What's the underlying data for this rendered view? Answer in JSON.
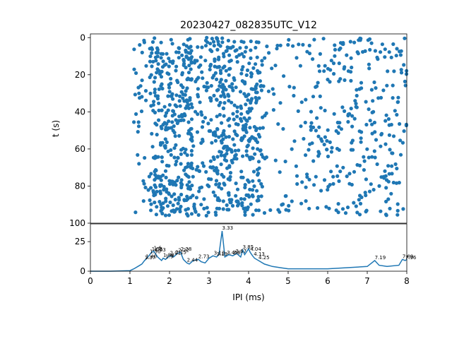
{
  "chart_data": [
    {
      "type": "scatter",
      "title": "20230427_082835UTC_V12",
      "xlabel": "",
      "ylabel": "t (s)",
      "xlim": [
        0,
        8
      ],
      "ylim": [
        100,
        -2
      ],
      "y_inverted": true,
      "color": "#1f77b4",
      "x_ticks": [],
      "y_ticks": [
        "0",
        "20",
        "40",
        "60",
        "80",
        "100"
      ],
      "y_tick_values": [
        0,
        20,
        40,
        60,
        80,
        100
      ],
      "x_range_of_points": [
        1.1,
        8.0
      ],
      "t_range_of_points": [
        0,
        96
      ],
      "density_profile": [
        {
          "x_from": 1.1,
          "x_to": 1.5,
          "weight": 0.8
        },
        {
          "x_from": 1.5,
          "x_to": 2.6,
          "weight": 3.2
        },
        {
          "x_from": 2.6,
          "x_to": 3.1,
          "weight": 1.6
        },
        {
          "x_from": 3.1,
          "x_to": 3.5,
          "weight": 3.4
        },
        {
          "x_from": 3.5,
          "x_to": 4.3,
          "weight": 2.6
        },
        {
          "x_from": 4.3,
          "x_to": 5.5,
          "weight": 0.6
        },
        {
          "x_from": 5.5,
          "x_to": 8.0,
          "weight": 1.0
        }
      ],
      "approx_point_count": 1200
    },
    {
      "type": "line",
      "xlabel": "IPI (ms)",
      "ylabel": "",
      "xlim": [
        0,
        8
      ],
      "ylim": [
        0,
        40
      ],
      "color": "#1f77b4",
      "x_ticks": [
        "0",
        "1",
        "2",
        "3",
        "4",
        "5",
        "6",
        "7",
        "8"
      ],
      "x_tick_values": [
        0,
        1,
        2,
        3,
        4,
        5,
        6,
        7,
        8
      ],
      "y_ticks": [
        "0",
        "25"
      ],
      "y_tick_values": [
        0,
        25
      ],
      "x": [
        0,
        0.5,
        1.0,
        1.1,
        1.2,
        1.3,
        1.37,
        1.4,
        1.5,
        1.55,
        1.6,
        1.7,
        1.8,
        1.84,
        1.9,
        2.0,
        2.1,
        2.2,
        2.28,
        2.35,
        2.44,
        2.5,
        2.6,
        2.73,
        2.8,
        2.9,
        3.0,
        3.1,
        3.19,
        3.25,
        3.33,
        3.4,
        3.5,
        3.6,
        3.7,
        3.8,
        3.85,
        3.9,
        4.0,
        4.04,
        4.1,
        4.15,
        4.25,
        4.4,
        4.6,
        4.8,
        5.0,
        5.5,
        6.0,
        6.5,
        7.0,
        7.19,
        7.3,
        7.5,
        7.8,
        7.89,
        7.96,
        8.0
      ],
      "y": [
        0,
        0,
        0.5,
        2,
        4,
        6,
        9,
        10,
        14,
        16,
        17,
        12,
        9,
        11,
        10,
        13,
        12,
        15,
        16,
        10,
        7,
        6,
        9,
        10,
        8,
        7,
        11,
        13,
        12,
        14,
        34,
        12,
        14,
        13,
        15,
        12,
        18,
        14,
        19,
        16,
        13,
        11,
        9,
        6,
        4,
        3,
        2,
        2,
        2,
        3,
        4,
        9,
        5,
        4,
        5,
        10,
        9,
        10
      ],
      "peak_labels": [
        {
          "x": 1.37,
          "label": "1.37"
        },
        {
          "x": 1.4,
          "label": "1.40"
        },
        {
          "x": 1.5,
          "label": "1.50"
        },
        {
          "x": 1.55,
          "label": "1.55"
        },
        {
          "x": 1.63,
          "label": "1.63"
        },
        {
          "x": 1.6,
          "label": "1.6"
        },
        {
          "x": 1.9,
          "label": "1.9"
        },
        {
          "x": 1.84,
          "label": "1.84"
        },
        {
          "x": 2.01,
          "label": "2.01"
        },
        {
          "x": 2.15,
          "label": "2.15"
        },
        {
          "x": 2.22,
          "label": "2.22"
        },
        {
          "x": 2.28,
          "label": "2.28"
        },
        {
          "x": 2.44,
          "label": "2.44"
        },
        {
          "x": 2.73,
          "label": "2.73"
        },
        {
          "x": 3.12,
          "label": "3.12"
        },
        {
          "x": 3.19,
          "label": "3.19"
        },
        {
          "x": 3.33,
          "label": "3.33"
        },
        {
          "x": 3.45,
          "label": "3.45"
        },
        {
          "x": 3.6,
          "label": "3.6"
        },
        {
          "x": 3.67,
          "label": "3.67"
        },
        {
          "x": 3.85,
          "label": "3.85"
        },
        {
          "x": 4.04,
          "label": "4.04"
        },
        {
          "x": 4.13,
          "label": "4.13"
        },
        {
          "x": 4.25,
          "label": "4.25"
        },
        {
          "x": 7.19,
          "label": "7.19"
        },
        {
          "x": 7.89,
          "label": "7.89"
        },
        {
          "x": 7.96,
          "label": "7.96"
        }
      ]
    }
  ]
}
